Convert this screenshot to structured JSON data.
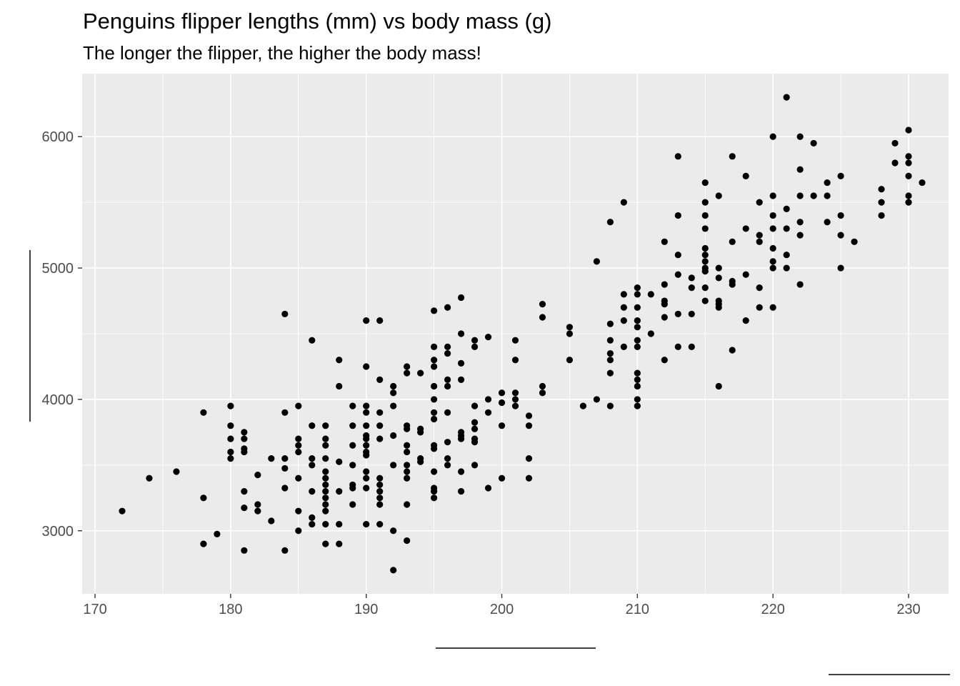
{
  "chart_data": {
    "type": "scatter",
    "title": "Penguins flipper lengths (mm) vs body mass (g)",
    "subtitle": "The longer the flipper, the higher the body mass!",
    "xlabel": "",
    "ylabel": "",
    "xlim": [
      169.05,
      232.95
    ],
    "ylim": [
      2520,
      6480
    ],
    "x_ticks": [
      170,
      180,
      190,
      200,
      210,
      220,
      230
    ],
    "y_ticks": [
      3000,
      4000,
      5000,
      6000
    ],
    "grid": true,
    "legend": "none",
    "point_color": "#000000",
    "panel_background": "#ebebeb",
    "points": [
      [
        172,
        3150
      ],
      [
        174,
        3400
      ],
      [
        176,
        3450
      ],
      [
        178,
        3900
      ],
      [
        178,
        3250
      ],
      [
        178,
        2900
      ],
      [
        179,
        2975
      ],
      [
        180,
        3950
      ],
      [
        180,
        3800
      ],
      [
        180,
        3700
      ],
      [
        180,
        3600
      ],
      [
        180,
        3550
      ],
      [
        181,
        3750
      ],
      [
        181,
        3700
      ],
      [
        181,
        3625
      ],
      [
        181,
        3600
      ],
      [
        181,
        3300
      ],
      [
        181,
        3175
      ],
      [
        181,
        2850
      ],
      [
        182,
        3425
      ],
      [
        182,
        3200
      ],
      [
        182,
        3150
      ],
      [
        183,
        3550
      ],
      [
        183,
        3075
      ],
      [
        184,
        4650
      ],
      [
        184,
        3900
      ],
      [
        184,
        3550
      ],
      [
        184,
        3475
      ],
      [
        184,
        3325
      ],
      [
        184,
        2850
      ],
      [
        185,
        3950
      ],
      [
        185,
        3700
      ],
      [
        185,
        3650
      ],
      [
        185,
        3600
      ],
      [
        185,
        3400
      ],
      [
        185,
        3150
      ],
      [
        185,
        3000
      ],
      [
        186,
        4450
      ],
      [
        186,
        3800
      ],
      [
        186,
        3550
      ],
      [
        186,
        3500
      ],
      [
        186,
        3300
      ],
      [
        186,
        3100
      ],
      [
        186,
        3050
      ],
      [
        187,
        3800
      ],
      [
        187,
        3700
      ],
      [
        187,
        3650
      ],
      [
        187,
        3550
      ],
      [
        187,
        3450
      ],
      [
        187,
        3400
      ],
      [
        187,
        3350
      ],
      [
        187,
        3300
      ],
      [
        187,
        3250
      ],
      [
        187,
        3200
      ],
      [
        187,
        3150
      ],
      [
        187,
        3050
      ],
      [
        187,
        2900
      ],
      [
        188,
        4300
      ],
      [
        188,
        4100
      ],
      [
        188,
        3525
      ],
      [
        188,
        3300
      ],
      [
        188,
        3050
      ],
      [
        188,
        2900
      ],
      [
        189,
        3950
      ],
      [
        189,
        3800
      ],
      [
        189,
        3650
      ],
      [
        189,
        3500
      ],
      [
        189,
        3350
      ],
      [
        189,
        3325
      ],
      [
        189,
        3200
      ],
      [
        190,
        4600
      ],
      [
        190,
        4250
      ],
      [
        190,
        3950
      ],
      [
        190,
        3900
      ],
      [
        190,
        3800
      ],
      [
        190,
        3725
      ],
      [
        190,
        3700
      ],
      [
        190,
        3650
      ],
      [
        190,
        3600
      ],
      [
        190,
        3575
      ],
      [
        190,
        3450
      ],
      [
        190,
        3400
      ],
      [
        190,
        3325
      ],
      [
        190,
        3050
      ],
      [
        191,
        4600
      ],
      [
        191,
        4150
      ],
      [
        191,
        3900
      ],
      [
        191,
        3800
      ],
      [
        191,
        3700
      ],
      [
        191,
        3400
      ],
      [
        191,
        3350
      ],
      [
        191,
        3300
      ],
      [
        191,
        3250
      ],
      [
        191,
        3200
      ],
      [
        191,
        3050
      ],
      [
        192,
        4100
      ],
      [
        192,
        4050
      ],
      [
        192,
        3950
      ],
      [
        192,
        3725
      ],
      [
        192,
        3500
      ],
      [
        192,
        3000
      ],
      [
        192,
        2700
      ],
      [
        193,
        4250
      ],
      [
        193,
        4200
      ],
      [
        193,
        3800
      ],
      [
        193,
        3775
      ],
      [
        193,
        3650
      ],
      [
        193,
        3600
      ],
      [
        193,
        3500
      ],
      [
        193,
        3450
      ],
      [
        193,
        3400
      ],
      [
        193,
        3200
      ],
      [
        193,
        2925
      ],
      [
        194,
        4200
      ],
      [
        194,
        3775
      ],
      [
        194,
        3750
      ],
      [
        194,
        3550
      ],
      [
        194,
        3525
      ],
      [
        195,
        4675
      ],
      [
        195,
        4400
      ],
      [
        195,
        4300
      ],
      [
        195,
        4250
      ],
      [
        195,
        4100
      ],
      [
        195,
        4000
      ],
      [
        195,
        3900
      ],
      [
        195,
        3850
      ],
      [
        195,
        3650
      ],
      [
        195,
        3625
      ],
      [
        195,
        3450
      ],
      [
        195,
        3325
      ],
      [
        195,
        3300
      ],
      [
        195,
        3250
      ],
      [
        196,
        4700
      ],
      [
        196,
        4400
      ],
      [
        196,
        4350
      ],
      [
        196,
        4150
      ],
      [
        196,
        4100
      ],
      [
        196,
        3900
      ],
      [
        196,
        3675
      ],
      [
        196,
        3550
      ],
      [
        196,
        3500
      ],
      [
        197,
        4775
      ],
      [
        197,
        4500
      ],
      [
        197,
        4275
      ],
      [
        197,
        4150
      ],
      [
        197,
        3750
      ],
      [
        197,
        3725
      ],
      [
        197,
        3700
      ],
      [
        197,
        3450
      ],
      [
        197,
        3300
      ],
      [
        198,
        4450
      ],
      [
        198,
        4400
      ],
      [
        198,
        3950
      ],
      [
        198,
        3825
      ],
      [
        198,
        3775
      ],
      [
        198,
        3700
      ],
      [
        198,
        3675
      ],
      [
        198,
        3500
      ],
      [
        199,
        4475
      ],
      [
        199,
        4000
      ],
      [
        199,
        3900
      ],
      [
        199,
        3325
      ],
      [
        200,
        4050
      ],
      [
        200,
        3975
      ],
      [
        200,
        3800
      ],
      [
        200,
        3400
      ],
      [
        201,
        4450
      ],
      [
        201,
        4300
      ],
      [
        201,
        4050
      ],
      [
        201,
        4000
      ],
      [
        201,
        3950
      ],
      [
        202,
        3875
      ],
      [
        202,
        3800
      ],
      [
        202,
        3550
      ],
      [
        202,
        3400
      ],
      [
        203,
        4725
      ],
      [
        203,
        4625
      ],
      [
        203,
        4100
      ],
      [
        203,
        4050
      ],
      [
        205,
        4550
      ],
      [
        205,
        4500
      ],
      [
        205,
        4300
      ],
      [
        206,
        3950
      ],
      [
        207,
        5050
      ],
      [
        207,
        4000
      ],
      [
        208,
        5350
      ],
      [
        208,
        4575
      ],
      [
        208,
        4450
      ],
      [
        208,
        4350
      ],
      [
        208,
        4300
      ],
      [
        208,
        4200
      ],
      [
        208,
        3950
      ],
      [
        209,
        5500
      ],
      [
        209,
        4800
      ],
      [
        209,
        4700
      ],
      [
        209,
        4600
      ],
      [
        209,
        4400
      ],
      [
        210,
        4850
      ],
      [
        210,
        4800
      ],
      [
        210,
        4700
      ],
      [
        210,
        4600
      ],
      [
        210,
        4550
      ],
      [
        210,
        4450
      ],
      [
        210,
        4400
      ],
      [
        210,
        4200
      ],
      [
        210,
        4150
      ],
      [
        210,
        4100
      ],
      [
        210,
        4000
      ],
      [
        210,
        3950
      ],
      [
        211,
        4800
      ],
      [
        211,
        4500
      ],
      [
        212,
        5200
      ],
      [
        212,
        4875
      ],
      [
        212,
        4750
      ],
      [
        212,
        4725
      ],
      [
        212,
        4625
      ],
      [
        212,
        4300
      ],
      [
        213,
        5850
      ],
      [
        213,
        5400
      ],
      [
        213,
        5100
      ],
      [
        213,
        4950
      ],
      [
        213,
        4650
      ],
      [
        213,
        4400
      ],
      [
        214,
        4925
      ],
      [
        214,
        4850
      ],
      [
        214,
        4650
      ],
      [
        214,
        4400
      ],
      [
        215,
        5650
      ],
      [
        215,
        5500
      ],
      [
        215,
        5400
      ],
      [
        215,
        5300
      ],
      [
        215,
        5150
      ],
      [
        215,
        5100
      ],
      [
        215,
        5050
      ],
      [
        215,
        5000
      ],
      [
        215,
        4975
      ],
      [
        215,
        4850
      ],
      [
        215,
        4750
      ],
      [
        216,
        5550
      ],
      [
        216,
        5000
      ],
      [
        216,
        4925
      ],
      [
        216,
        4750
      ],
      [
        216,
        4725
      ],
      [
        216,
        4700
      ],
      [
        216,
        4100
      ],
      [
        217,
        5850
      ],
      [
        217,
        5200
      ],
      [
        217,
        4900
      ],
      [
        217,
        4875
      ],
      [
        217,
        4375
      ],
      [
        218,
        5700
      ],
      [
        218,
        5300
      ],
      [
        218,
        4950
      ],
      [
        218,
        4600
      ],
      [
        219,
        5500
      ],
      [
        219,
        5250
      ],
      [
        219,
        5200
      ],
      [
        219,
        4850
      ],
      [
        219,
        4700
      ],
      [
        220,
        6000
      ],
      [
        220,
        5550
      ],
      [
        220,
        5400
      ],
      [
        220,
        5300
      ],
      [
        220,
        5150
      ],
      [
        220,
        5050
      ],
      [
        220,
        5000
      ],
      [
        220,
        4700
      ],
      [
        221,
        6300
      ],
      [
        221,
        5450
      ],
      [
        221,
        5300
      ],
      [
        221,
        5100
      ],
      [
        221,
        5000
      ],
      [
        222,
        6000
      ],
      [
        222,
        5750
      ],
      [
        222,
        5550
      ],
      [
        222,
        5350
      ],
      [
        222,
        5250
      ],
      [
        222,
        4875
      ],
      [
        223,
        5950
      ],
      [
        223,
        5550
      ],
      [
        224,
        5650
      ],
      [
        224,
        5550
      ],
      [
        224,
        5350
      ],
      [
        225,
        5700
      ],
      [
        225,
        5400
      ],
      [
        225,
        5250
      ],
      [
        225,
        5000
      ],
      [
        226,
        5200
      ],
      [
        228,
        5600
      ],
      [
        228,
        5500
      ],
      [
        228,
        5400
      ],
      [
        229,
        5950
      ],
      [
        229,
        5800
      ],
      [
        230,
        6050
      ],
      [
        230,
        5850
      ],
      [
        230,
        5800
      ],
      [
        230,
        5700
      ],
      [
        230,
        5550
      ],
      [
        230,
        5500
      ],
      [
        231,
        5650
      ]
    ]
  }
}
